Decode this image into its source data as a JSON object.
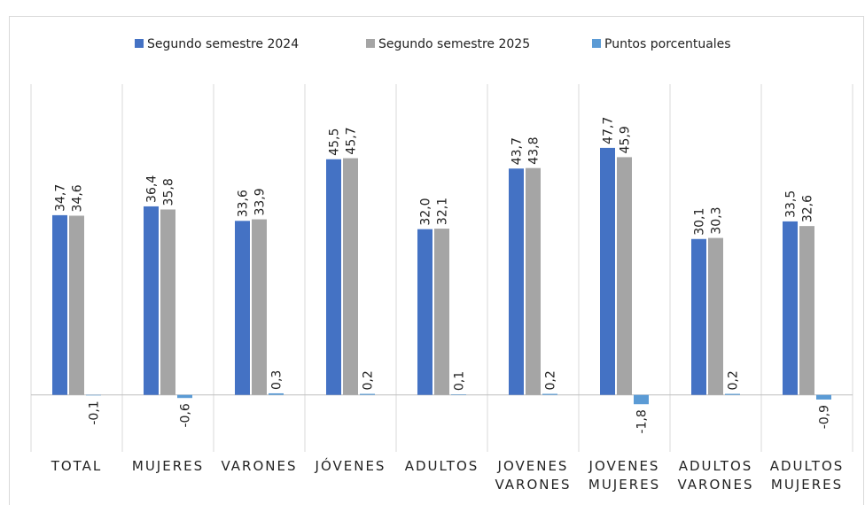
{
  "chart_data": {
    "type": "bar",
    "categories": [
      "TOTAL",
      "MUJERES",
      "VARONES",
      "JÓVENES",
      "ADULTOS",
      "JOVENES VARONES",
      "JOVENES MUJERES",
      "ADULTOS VARONES",
      "ADULTOS MUJERES"
    ],
    "series": [
      {
        "name": "Segundo semestre 2024",
        "color": "#4472c4",
        "values": [
          34.7,
          36.4,
          33.6,
          45.5,
          32.0,
          43.7,
          47.7,
          30.1,
          33.5
        ],
        "value_labels": [
          "34,7",
          "36,4",
          "33,6",
          "45,5",
          "32,0",
          "43,7",
          "47,7",
          "30,1",
          "33,5"
        ]
      },
      {
        "name": "Segundo semestre 2025",
        "color": "#a5a5a5",
        "values": [
          34.6,
          35.8,
          33.9,
          45.7,
          32.1,
          43.8,
          45.9,
          30.3,
          32.6
        ],
        "value_labels": [
          "34,6",
          "35,8",
          "33,9",
          "45,7",
          "32,1",
          "43,8",
          "45,9",
          "30,3",
          "32,6"
        ]
      },
      {
        "name": "Puntos porcentuales",
        "color": "#5b9bd5",
        "values": [
          -0.1,
          -0.6,
          0.3,
          0.2,
          0.1,
          0.2,
          -1.8,
          0.2,
          -0.9
        ],
        "value_labels": [
          "-0,1",
          "-0,6",
          "0,3",
          "0,2",
          "0,1",
          "0,2",
          "-1,8",
          "0,2",
          "-0,9"
        ]
      }
    ],
    "ylim": [
      -11,
      60
    ],
    "legend": "top"
  }
}
